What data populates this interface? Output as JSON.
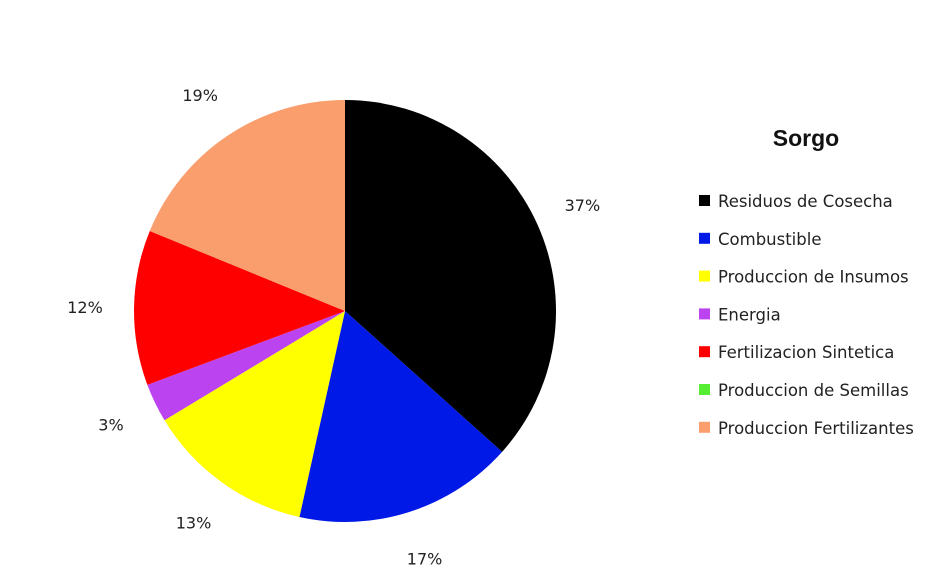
{
  "chart_data": {
    "type": "pie",
    "title": "Sorgo",
    "legend_position": "right",
    "slices": [
      {
        "name": "Residuos de Cosecha",
        "value": 37,
        "label": "37%",
        "color": "#000000"
      },
      {
        "name": "Combustible",
        "value": 17,
        "label": "17%",
        "color": "#0019E6"
      },
      {
        "name": "Produccion de Insumos",
        "value": 13,
        "label": "13%",
        "color": "#FFFF00"
      },
      {
        "name": "Energia",
        "value": 3,
        "label": "3%",
        "color": "#BB44F0"
      },
      {
        "name": "Fertilizacion Sintetica",
        "value": 12,
        "label": "12%",
        "color": "#FF0000"
      },
      {
        "name": "Produccion de Semillas",
        "value": 0,
        "label": "",
        "color": "#55EE33"
      },
      {
        "name": "Produccion Fertilizantes",
        "value": 19,
        "label": "19%",
        "color": "#FA9E6E"
      }
    ]
  }
}
